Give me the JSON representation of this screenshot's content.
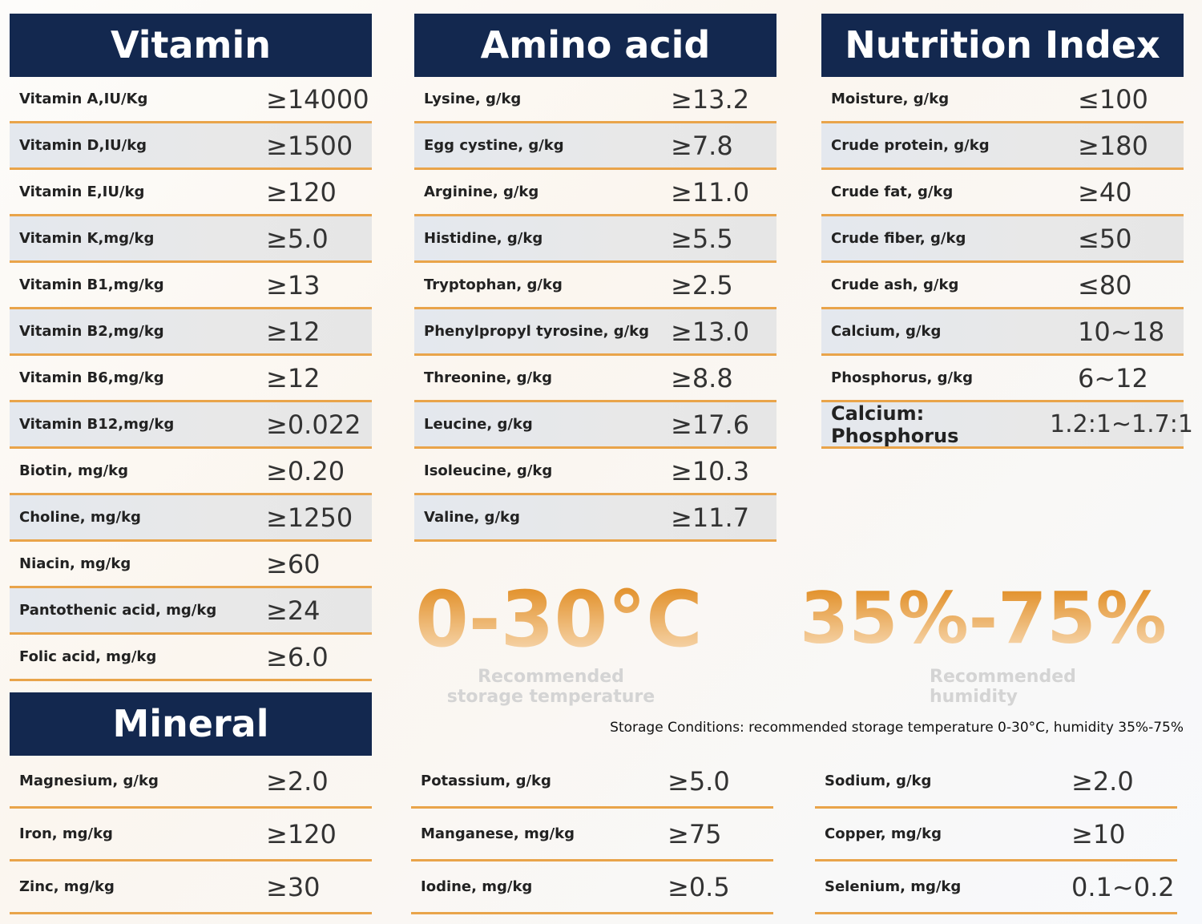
{
  "vitamin": {
    "title": "Vitamin",
    "rows": [
      [
        "Vitamin A,IU/Kg",
        "≥14000"
      ],
      [
        "Vitamin D,IU/kg",
        "≥1500"
      ],
      [
        "Vitamin E,IU/kg",
        "≥120"
      ],
      [
        "Vitamin K,mg/kg",
        "≥5.0"
      ],
      [
        "Vitamin B1,mg/kg",
        "≥13"
      ],
      [
        "Vitamin B2,mg/kg",
        "≥12"
      ],
      [
        "Vitamin B6,mg/kg",
        "≥12"
      ],
      [
        "Vitamin B12,mg/kg",
        "≥0.022"
      ],
      [
        "Biotin, mg/kg",
        "≥0.20"
      ],
      [
        "Choline, mg/kg",
        "≥1250"
      ],
      [
        "Niacin, mg/kg",
        "≥60"
      ],
      [
        "Pantothenic acid, mg/kg",
        "≥24"
      ],
      [
        "Folic acid, mg/kg",
        "≥6.0"
      ]
    ]
  },
  "amino": {
    "title": "Amino acid",
    "rows": [
      [
        "Lysine, g/kg",
        "≥13.2"
      ],
      [
        "Egg cystine, g/kg",
        "≥7.8"
      ],
      [
        "Arginine, g/kg",
        "≥11.0"
      ],
      [
        "Histidine, g/kg",
        "≥5.5"
      ],
      [
        "Tryptophan, g/kg",
        "≥2.5"
      ],
      [
        "Phenylpropyl tyrosine, g/kg",
        "≥13.0"
      ],
      [
        "Threonine, g/kg",
        "≥8.8"
      ],
      [
        "Leucine, g/kg",
        "≥17.6"
      ],
      [
        "Isoleucine, g/kg",
        "≥10.3"
      ],
      [
        "Valine, g/kg",
        "≥11.7"
      ]
    ]
  },
  "nutrition": {
    "title": "Nutrition Index",
    "rows": [
      [
        "Moisture, g/kg",
        "≤100"
      ],
      [
        "Crude protein, g/kg",
        "≥180"
      ],
      [
        "Crude fat, g/kg",
        "≥40"
      ],
      [
        "Crude fiber, g/kg",
        "≤50"
      ],
      [
        "Crude ash, g/kg",
        "≤80"
      ],
      [
        "Calcium, g/kg",
        "10~18"
      ],
      [
        "Phosphorus, g/kg",
        "6~12"
      ],
      [
        "Calcium: Phosphorus",
        "1.2:1~1.7:1"
      ]
    ]
  },
  "mineral": {
    "title": "Mineral",
    "rows": [
      [
        "Magnesium, g/kg",
        "≥2.0"
      ],
      [
        "Iron, mg/kg",
        "≥120"
      ],
      [
        "Zinc, mg/kg",
        "≥30"
      ]
    ]
  },
  "mineral_mid": {
    "rows": [
      [
        "Potassium, g/kg",
        "≥5.0"
      ],
      [
        "Manganese, mg/kg",
        "≥75"
      ],
      [
        "Iodine, mg/kg",
        "≥0.5"
      ]
    ]
  },
  "mineral_right": {
    "rows": [
      [
        "Sodium, g/kg",
        "≥2.0"
      ],
      [
        "Copper, mg/kg",
        "≥10"
      ],
      [
        "Selenium, mg/kg",
        "0.1~0.2"
      ]
    ]
  },
  "storage": {
    "temp": "0-30°C",
    "temp_label": "Recommended storage temperature",
    "humidity": "35%-75%",
    "humidity_label": "Recommended humidity",
    "note": "Storage Conditions: recommended storage temperature 0-30°C, humidity 35%-75%"
  }
}
